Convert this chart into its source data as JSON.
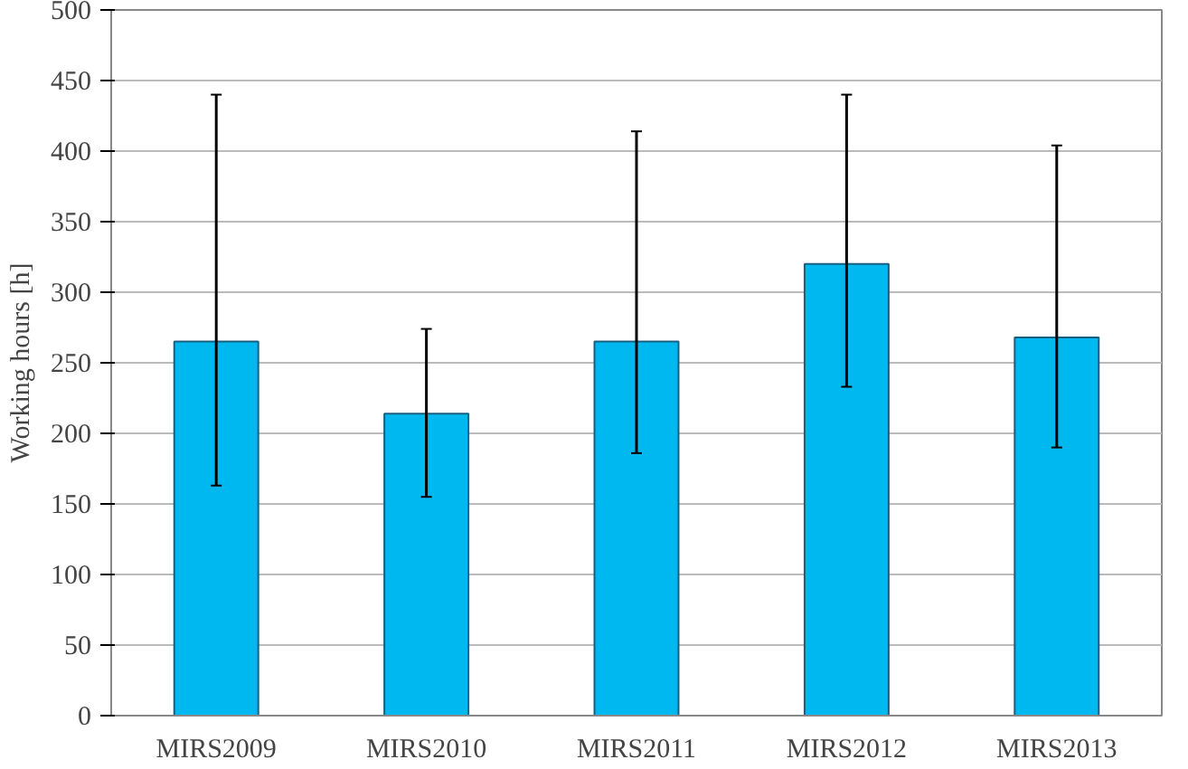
{
  "chart_data": {
    "type": "bar",
    "ylabel": "Working hours [h]",
    "categories": [
      "MIRS2009",
      "MIRS2010",
      "MIRS2011",
      "MIRS2012",
      "MIRS2013"
    ],
    "values": [
      265,
      214,
      265,
      320,
      268
    ],
    "errors": [
      [
        163,
        440
      ],
      [
        155,
        274
      ],
      [
        186,
        414
      ],
      [
        233,
        440
      ],
      [
        190,
        404
      ]
    ],
    "color": "#00b8f0",
    "ylim": [
      0,
      500
    ],
    "yticks": [
      0,
      50,
      100,
      150,
      200,
      250,
      300,
      350,
      400,
      450,
      500
    ],
    "grid": "y"
  }
}
